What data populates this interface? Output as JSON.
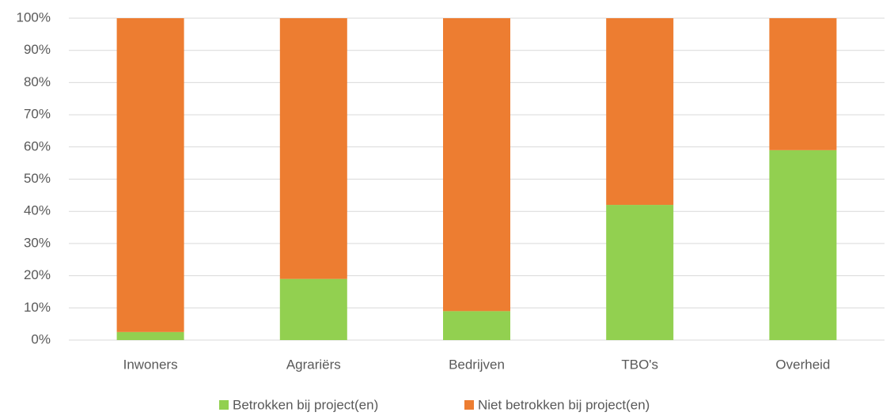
{
  "chart_data": {
    "type": "bar",
    "stacked": true,
    "categories": [
      "Inwoners",
      "Agrariërs",
      "Bedrijven",
      "TBO's",
      "Overheid"
    ],
    "series": [
      {
        "name": "Betrokken bij project(en)",
        "color": "#92d050",
        "values": [
          2.5,
          19,
          9,
          42,
          59
        ]
      },
      {
        "name": "Niet betrokken bij project(en)",
        "color": "#ed7d31",
        "values": [
          97.5,
          81,
          91,
          58,
          41
        ]
      }
    ],
    "ylim": [
      0,
      100
    ],
    "yticks": [
      {
        "value": 0,
        "label": "0%"
      },
      {
        "value": 10,
        "label": "10%"
      },
      {
        "value": 20,
        "label": "20%"
      },
      {
        "value": 30,
        "label": "30%"
      },
      {
        "value": 40,
        "label": "40%"
      },
      {
        "value": 50,
        "label": "50%"
      },
      {
        "value": 60,
        "label": "60%"
      },
      {
        "value": 70,
        "label": "70%"
      },
      {
        "value": 80,
        "label": "80%"
      },
      {
        "value": 90,
        "label": "90%"
      },
      {
        "value": 100,
        "label": "100%"
      }
    ],
    "grid": true,
    "legend": "bottom"
  }
}
